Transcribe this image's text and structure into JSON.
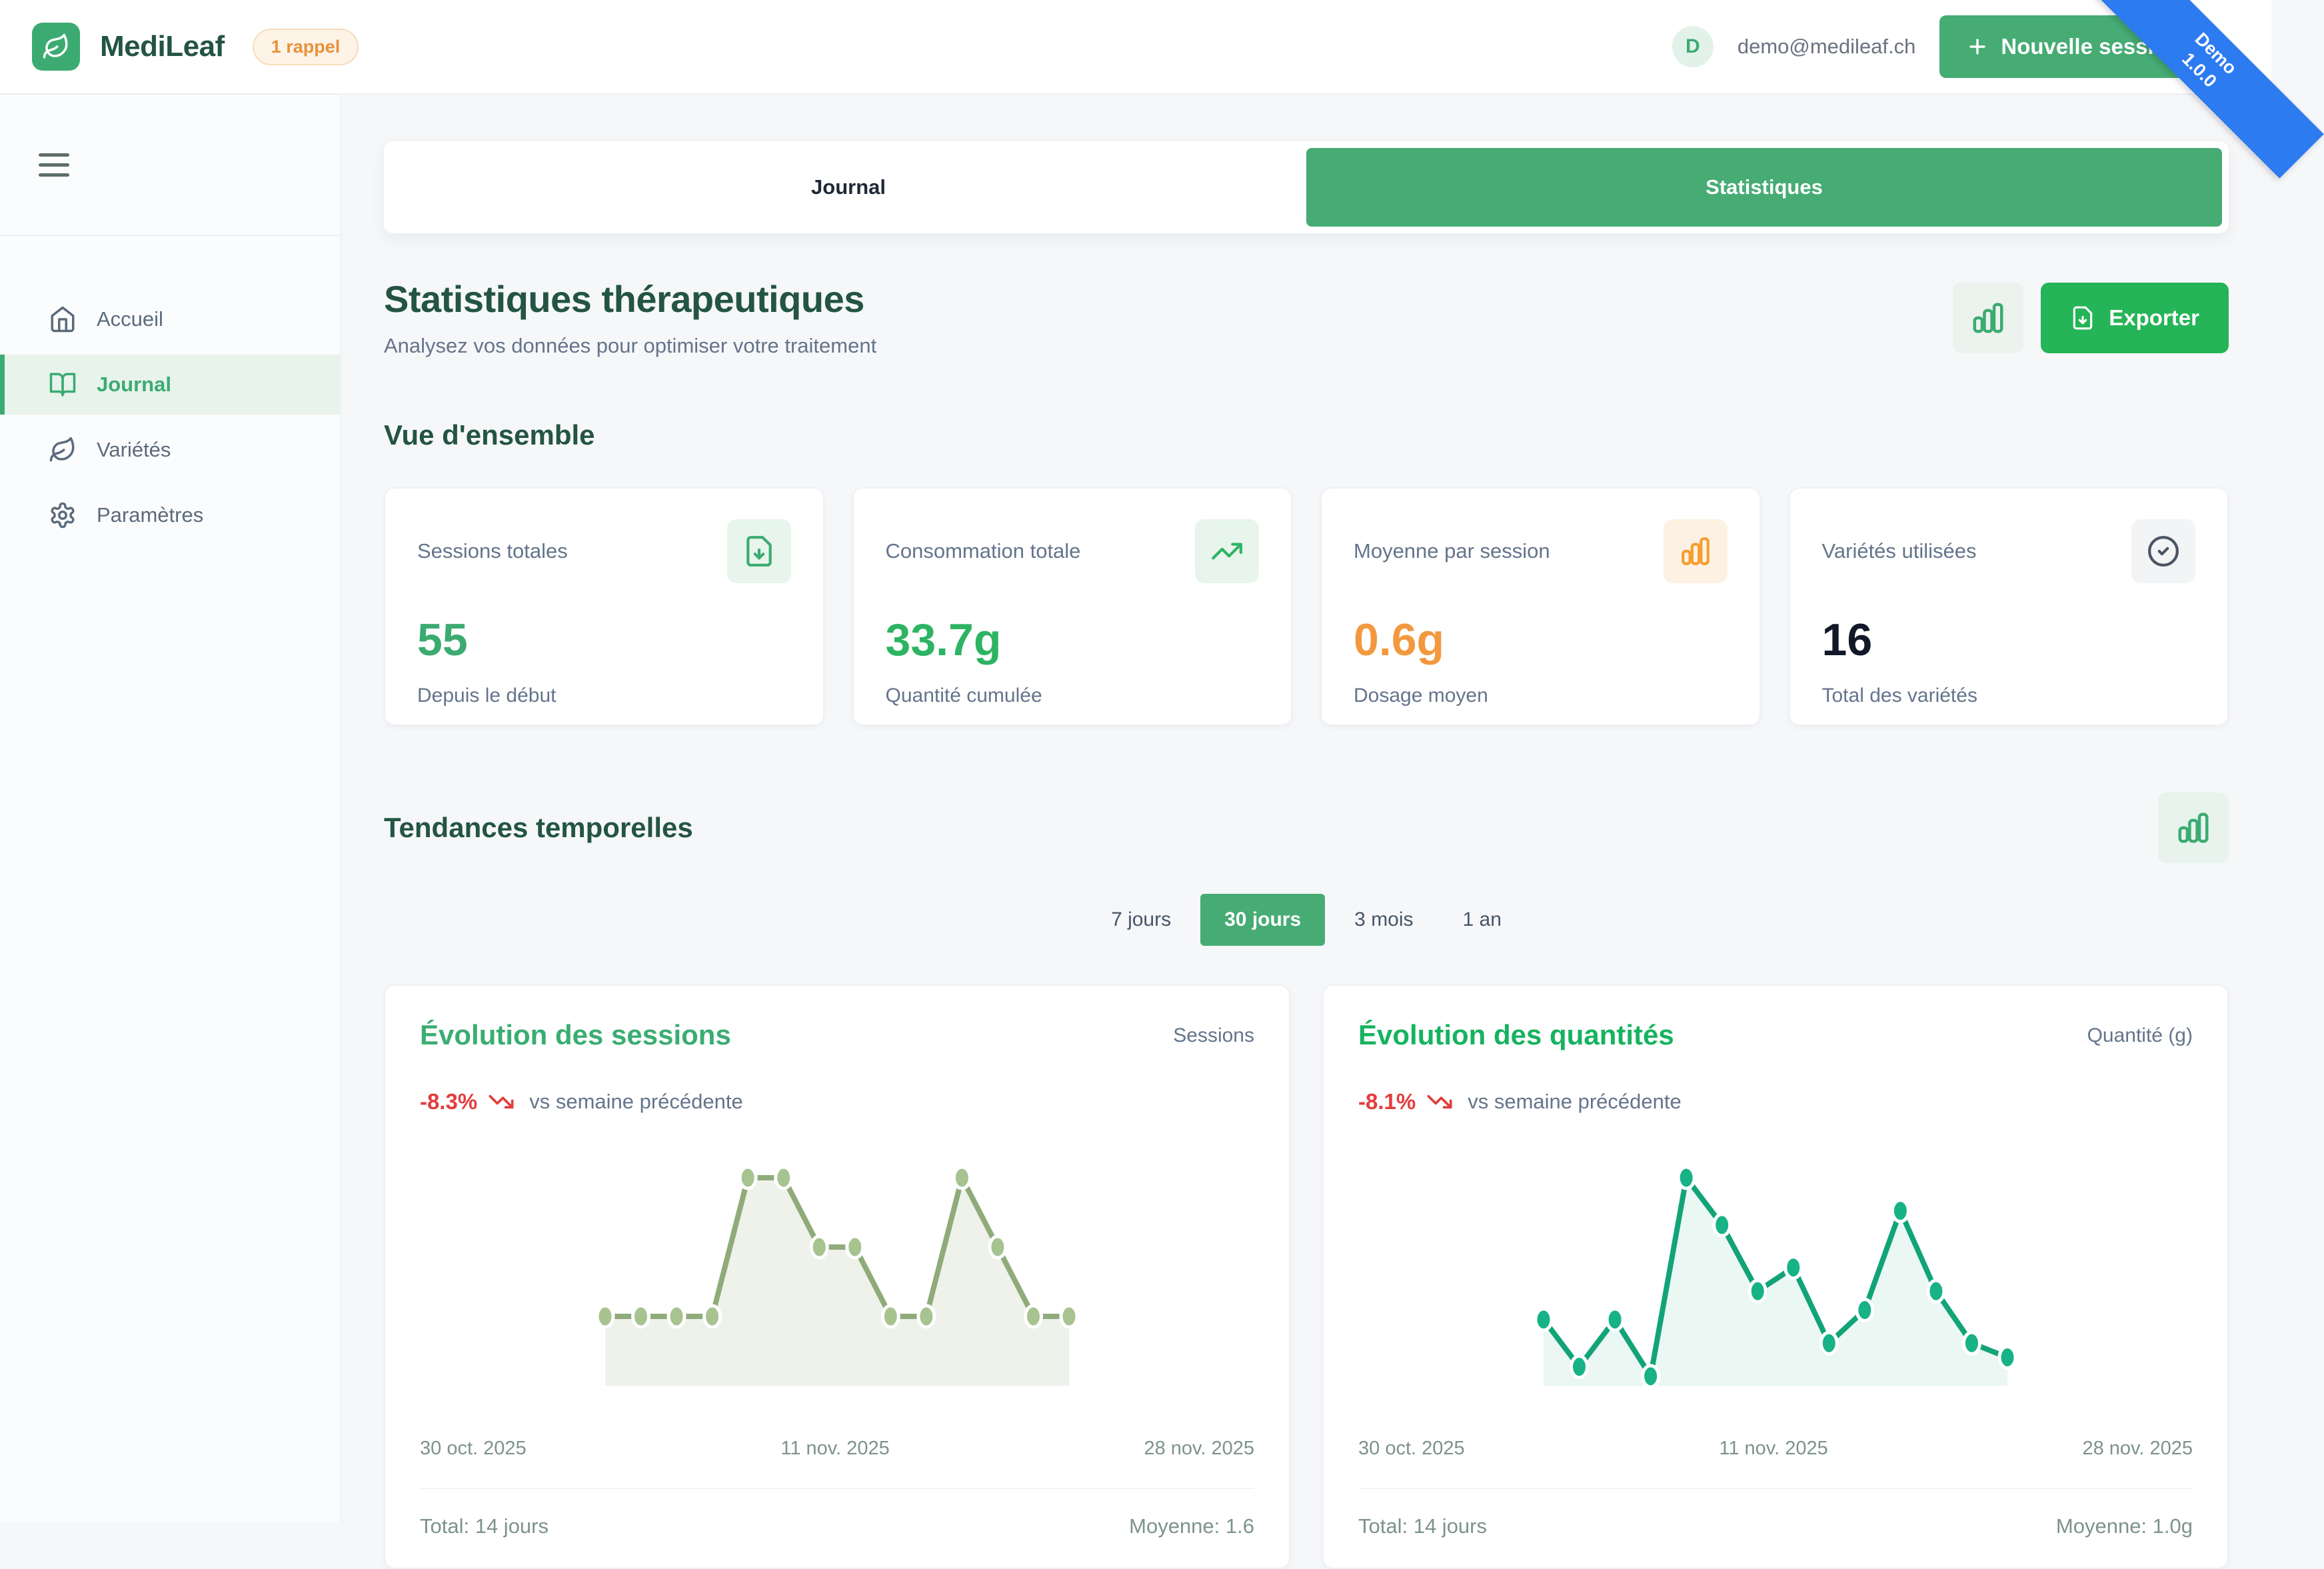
{
  "colors": {
    "brand_green": "#3cab71",
    "primary_button_green": "#46ac74",
    "export_green": "#25b457",
    "heading_dark_green": "#235444",
    "accent_orange": "#f2993f",
    "negative_red": "#e23d3d",
    "ribbon_blue": "#2d7bf0"
  },
  "header": {
    "app_name": "MediLeaf",
    "badge": "1 rappel",
    "user_initial": "D",
    "user_email": "demo@medileaf.ch",
    "new_session_label": "Nouvelle session",
    "ribbon_line1": "Demo",
    "ribbon_line2": "1.0.0"
  },
  "sidebar": {
    "items": [
      {
        "label": "Accueil",
        "icon": "home-icon",
        "active": false
      },
      {
        "label": "Journal",
        "icon": "book-open-icon",
        "active": true
      },
      {
        "label": "Variétés",
        "icon": "leaf-icon",
        "active": false
      },
      {
        "label": "Paramètres",
        "icon": "gear-icon",
        "active": false
      }
    ]
  },
  "tabs": [
    {
      "label": "Journal",
      "active": false
    },
    {
      "label": "Statistiques",
      "active": true
    }
  ],
  "page": {
    "title": "Statistiques thérapeutiques",
    "subtitle": "Analysez vos données pour optimiser votre traitement",
    "export_label": "Exporter"
  },
  "overview": {
    "heading": "Vue d'ensemble",
    "cards": [
      {
        "label": "Sessions totales",
        "value": "55",
        "sub": "Depuis le début",
        "icon": "file-download-icon",
        "accent": "#3cab71"
      },
      {
        "label": "Consommation totale",
        "value": "33.7g",
        "sub": "Quantité cumulée",
        "icon": "trending-up-icon",
        "accent": "#2db463"
      },
      {
        "label": "Moyenne par session",
        "value": "0.6g",
        "sub": "Dosage moyen",
        "icon": "bar-chart-icon",
        "accent": "#f2993f"
      },
      {
        "label": "Variétés utilisées",
        "value": "16",
        "sub": "Total des variétés",
        "icon": "circle-check-icon",
        "accent": "#111827"
      }
    ]
  },
  "trends": {
    "heading": "Tendances temporelles",
    "ranges": [
      {
        "label": "7 jours",
        "active": false
      },
      {
        "label": "30 jours",
        "active": true
      },
      {
        "label": "3 mois",
        "active": false
      },
      {
        "label": "1 an",
        "active": false
      }
    ]
  },
  "chart_data": [
    {
      "type": "area",
      "title": "Évolution des sessions",
      "unit_label": "Sessions",
      "delta": "-8.3%",
      "delta_note": "vs semaine précédente",
      "values": [
        1,
        1,
        1,
        1,
        3,
        3,
        2,
        2,
        1,
        1,
        3,
        2,
        1,
        1
      ],
      "ylim": [
        0,
        3
      ],
      "x_ticks": [
        "30 oct. 2025",
        "11 nov. 2025",
        "28 nov. 2025"
      ],
      "footer_left": "Total: 14 jours",
      "footer_right": "Moyenne: 1.6",
      "line_color": "#8fab7a",
      "dot_color": "#a6c390",
      "fill_color": "rgba(148,176,125,0.16)"
    },
    {
      "type": "area",
      "title": "Évolution des quantités",
      "unit_label": "Quantité (g)",
      "delta": "-8.1%",
      "delta_note": "vs semaine précédente",
      "values": [
        0.7,
        0.2,
        0.7,
        0.1,
        2.2,
        1.7,
        1.0,
        1.25,
        0.45,
        0.8,
        1.85,
        1.0,
        0.45,
        0.3
      ],
      "ylim": [
        0,
        2.2
      ],
      "x_ticks": [
        "30 oct. 2025",
        "11 nov. 2025",
        "28 nov. 2025"
      ],
      "footer_left": "Total: 14 jours",
      "footer_right": "Moyenne: 1.0g",
      "line_color": "#12a478",
      "dot_color": "#17b286",
      "fill_color": "rgba(22,168,122,0.09)"
    }
  ]
}
